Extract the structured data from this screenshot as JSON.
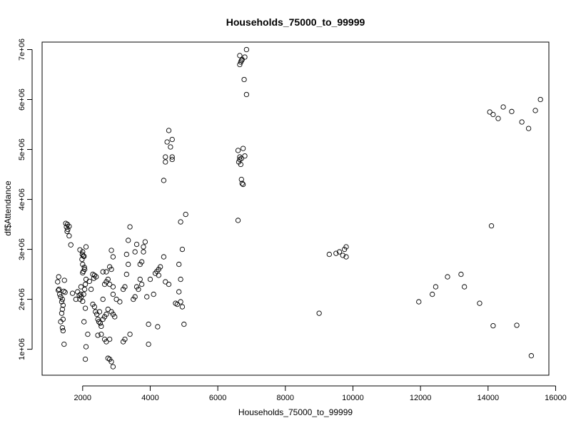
{
  "chart_data": {
    "type": "scatter",
    "title": "Households_75000_to_99999",
    "xlabel": "Households_75000_to_99999",
    "ylabel": "df$Attendance",
    "xlim": [
      800,
      15800
    ],
    "ylim": [
      480000,
      7150000
    ],
    "x_ticks": [
      2000,
      4000,
      6000,
      8000,
      10000,
      12000,
      14000,
      16000
    ],
    "x_tick_labels": [
      "2000",
      "4000",
      "6000",
      "8000",
      "10000",
      "12000",
      "14000",
      "16000"
    ],
    "y_ticks": [
      1000000,
      2000000,
      3000000,
      4000000,
      5000000,
      6000000,
      7000000
    ],
    "y_tick_labels": [
      "1e+06",
      "2e+06",
      "3e+06",
      "4e+06",
      "5e+06",
      "6e+06",
      "7e+06"
    ],
    "grid": false,
    "marker": "open-circle",
    "points": [
      [
        1290,
        2450000
      ],
      [
        1260,
        2350000
      ],
      [
        1300,
        2200000
      ],
      [
        1280,
        2180000
      ],
      [
        1320,
        2100000
      ],
      [
        1350,
        2050000
      ],
      [
        1400,
        2000000
      ],
      [
        1380,
        1950000
      ],
      [
        1420,
        1880000
      ],
      [
        1400,
        1800000
      ],
      [
        1380,
        1720000
      ],
      [
        1420,
        1600000
      ],
      [
        1350,
        1550000
      ],
      [
        1400,
        1430000
      ],
      [
        1420,
        1370000
      ],
      [
        1450,
        1100000
      ],
      [
        1460,
        2380000
      ],
      [
        1440,
        2160000
      ],
      [
        1480,
        2140000
      ],
      [
        1500,
        3520000
      ],
      [
        1550,
        3500000
      ],
      [
        1520,
        3450000
      ],
      [
        1560,
        3400000
      ],
      [
        1540,
        3360000
      ],
      [
        1600,
        3460000
      ],
      [
        1600,
        3270000
      ],
      [
        1650,
        3090000
      ],
      [
        1700,
        2120000
      ],
      [
        1800,
        2000000
      ],
      [
        1850,
        2150000
      ],
      [
        1900,
        2080000
      ],
      [
        1920,
        2000000
      ],
      [
        1950,
        2250000
      ],
      [
        1980,
        2800000
      ],
      [
        1920,
        2990000
      ],
      [
        1990,
        2900000
      ],
      [
        2000,
        2950000
      ],
      [
        2020,
        2870000
      ],
      [
        2040,
        2860000
      ],
      [
        2000,
        2700000
      ],
      [
        2050,
        2640000
      ],
      [
        2020,
        2560000
      ],
      [
        2000,
        2530000
      ],
      [
        2060,
        2600000
      ],
      [
        2100,
        3050000
      ],
      [
        2100,
        2400000
      ],
      [
        2080,
        2300000
      ],
      [
        2060,
        2200000
      ],
      [
        2030,
        2100000
      ],
      [
        2000,
        1960000
      ],
      [
        1960,
        2050000
      ],
      [
        1940,
        2100000
      ],
      [
        2080,
        1820000
      ],
      [
        2040,
        1550000
      ],
      [
        2100,
        1050000
      ],
      [
        2080,
        800000
      ],
      [
        2150,
        1300000
      ],
      [
        2200,
        2360000
      ],
      [
        2250,
        2200000
      ],
      [
        2300,
        2500000
      ],
      [
        2350,
        2480000
      ],
      [
        2330,
        2420000
      ],
      [
        2400,
        2450000
      ],
      [
        2300,
        1900000
      ],
      [
        2350,
        1850000
      ],
      [
        2380,
        1750000
      ],
      [
        2420,
        1700000
      ],
      [
        2450,
        1600000
      ],
      [
        2500,
        1750000
      ],
      [
        2480,
        1550000
      ],
      [
        2520,
        1520000
      ],
      [
        2550,
        1460000
      ],
      [
        2450,
        1280000
      ],
      [
        2550,
        1300000
      ],
      [
        2600,
        1600000
      ],
      [
        2650,
        1650000
      ],
      [
        2700,
        1700000
      ],
      [
        2600,
        2000000
      ],
      [
        2650,
        2300000
      ],
      [
        2700,
        2350000
      ],
      [
        2750,
        2400000
      ],
      [
        2700,
        2550000
      ],
      [
        2600,
        2550000
      ],
      [
        2650,
        1200000
      ],
      [
        2700,
        1150000
      ],
      [
        2750,
        820000
      ],
      [
        2800,
        800000
      ],
      [
        2850,
        750000
      ],
      [
        2900,
        650000
      ],
      [
        2800,
        1200000
      ],
      [
        2850,
        1750000
      ],
      [
        2750,
        1800000
      ],
      [
        2900,
        1700000
      ],
      [
        2950,
        1650000
      ],
      [
        2850,
        2980000
      ],
      [
        2900,
        2850000
      ],
      [
        2800,
        2650000
      ],
      [
        2850,
        2600000
      ],
      [
        2800,
        2300000
      ],
      [
        2900,
        2250000
      ],
      [
        2900,
        2100000
      ],
      [
        3000,
        2000000
      ],
      [
        3100,
        1950000
      ],
      [
        3200,
        2200000
      ],
      [
        3250,
        2250000
      ],
      [
        3300,
        2500000
      ],
      [
        3350,
        2700000
      ],
      [
        3300,
        2900000
      ],
      [
        3350,
        3180000
      ],
      [
        3400,
        3450000
      ],
      [
        3200,
        1150000
      ],
      [
        3250,
        1200000
      ],
      [
        3400,
        1300000
      ],
      [
        3500,
        2000000
      ],
      [
        3550,
        2050000
      ],
      [
        3600,
        2250000
      ],
      [
        3650,
        2200000
      ],
      [
        3700,
        2400000
      ],
      [
        3750,
        2300000
      ],
      [
        3700,
        2700000
      ],
      [
        3750,
        2750000
      ],
      [
        3800,
        2950000
      ],
      [
        3800,
        3050000
      ],
      [
        3850,
        3150000
      ],
      [
        3600,
        3100000
      ],
      [
        3550,
        2950000
      ],
      [
        3900,
        2050000
      ],
      [
        3950,
        1500000
      ],
      [
        3950,
        1100000
      ],
      [
        4100,
        2100000
      ],
      [
        4000,
        2400000
      ],
      [
        4150,
        2520000
      ],
      [
        4200,
        2560000
      ],
      [
        4250,
        2600000
      ],
      [
        4300,
        2650000
      ],
      [
        4250,
        2480000
      ],
      [
        4220,
        1450000
      ],
      [
        4400,
        2850000
      ],
      [
        4450,
        2350000
      ],
      [
        4550,
        2300000
      ],
      [
        4400,
        4380000
      ],
      [
        4450,
        4850000
      ],
      [
        4450,
        4750000
      ],
      [
        4500,
        5150000
      ],
      [
        4550,
        5380000
      ],
      [
        4600,
        5050000
      ],
      [
        4650,
        5200000
      ],
      [
        4650,
        4850000
      ],
      [
        4650,
        4800000
      ],
      [
        4750,
        1920000
      ],
      [
        4800,
        1900000
      ],
      [
        4850,
        2150000
      ],
      [
        4900,
        2400000
      ],
      [
        4850,
        2700000
      ],
      [
        4900,
        1950000
      ],
      [
        4950,
        1850000
      ],
      [
        4950,
        3000000
      ],
      [
        4900,
        3550000
      ],
      [
        5050,
        3700000
      ],
      [
        5000,
        1500000
      ],
      [
        6600,
        4980000
      ],
      [
        6650,
        4850000
      ],
      [
        6620,
        4750000
      ],
      [
        6680,
        4700000
      ],
      [
        6650,
        4800000
      ],
      [
        6700,
        4820000
      ],
      [
        6750,
        5020000
      ],
      [
        6800,
        4870000
      ],
      [
        6700,
        4400000
      ],
      [
        6720,
        4320000
      ],
      [
        6750,
        4300000
      ],
      [
        6600,
        3580000
      ],
      [
        6650,
        6880000
      ],
      [
        6700,
        6780000
      ],
      [
        6680,
        6750000
      ],
      [
        6720,
        6800000
      ],
      [
        6650,
        6700000
      ],
      [
        6800,
        6850000
      ],
      [
        6850,
        7000000
      ],
      [
        6780,
        6400000
      ],
      [
        6850,
        6100000
      ],
      [
        9000,
        1720000
      ],
      [
        9300,
        2900000
      ],
      [
        9500,
        2920000
      ],
      [
        9600,
        2950000
      ],
      [
        9750,
        3000000
      ],
      [
        9800,
        3050000
      ],
      [
        9700,
        2880000
      ],
      [
        9800,
        2850000
      ],
      [
        11950,
        1950000
      ],
      [
        12350,
        2100000
      ],
      [
        12450,
        2250000
      ],
      [
        12800,
        2450000
      ],
      [
        13200,
        2500000
      ],
      [
        13300,
        2250000
      ],
      [
        13750,
        1920000
      ],
      [
        14100,
        3470000
      ],
      [
        14150,
        1470000
      ],
      [
        14850,
        1480000
      ],
      [
        15280,
        870000
      ],
      [
        14050,
        5750000
      ],
      [
        14150,
        5700000
      ],
      [
        14300,
        5620000
      ],
      [
        14450,
        5850000
      ],
      [
        14700,
        5760000
      ],
      [
        15000,
        5550000
      ],
      [
        15200,
        5420000
      ],
      [
        15400,
        5780000
      ],
      [
        15550,
        6000000
      ]
    ]
  }
}
